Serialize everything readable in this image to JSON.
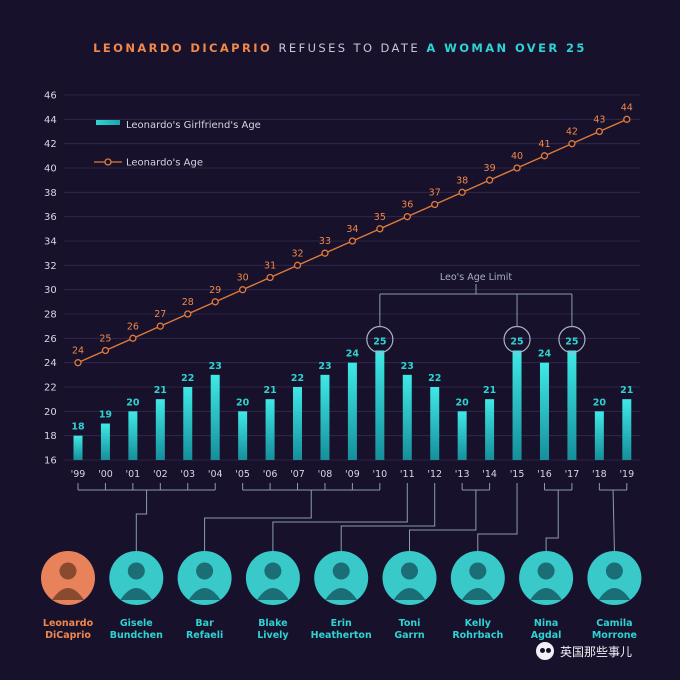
{
  "title": {
    "part1": "LEONARDO DICAPRIO",
    "part2": "REFUSES TO DATE",
    "part3": "A WOMAN OVER 25",
    "color_part1": "#f2874a",
    "color_part2": "#c9c6d6",
    "color_part3": "#2ed3d3"
  },
  "chart_data": {
    "type": "bar",
    "categories": [
      "'99",
      "'00",
      "'01",
      "'02",
      "'03",
      "'04",
      "'05",
      "'06",
      "'07",
      "'08",
      "'09",
      "'10",
      "'11",
      "'12",
      "'13",
      "'14",
      "'15",
      "'16",
      "'17",
      "'18",
      "'19"
    ],
    "series": [
      {
        "name": "Leonardo's Girlfriend's Age",
        "kind": "bar",
        "color": "#2ed3d3",
        "values": [
          18,
          19,
          20,
          21,
          22,
          23,
          20,
          21,
          22,
          23,
          24,
          25,
          23,
          22,
          20,
          21,
          25,
          24,
          25,
          20,
          21
        ]
      },
      {
        "name": "Leonardo's Age",
        "kind": "line",
        "color": "#e07a3a",
        "values": [
          24,
          25,
          26,
          27,
          28,
          29,
          30,
          31,
          32,
          33,
          34,
          35,
          36,
          37,
          38,
          39,
          40,
          41,
          42,
          43,
          44
        ]
      }
    ],
    "yticks": [
      16,
      18,
      20,
      22,
      24,
      26,
      28,
      30,
      32,
      34,
      36,
      38,
      40,
      42,
      44,
      46
    ],
    "ylim": [
      16,
      46
    ],
    "grid": true,
    "legend": "top-left",
    "highlighted_years": [
      "'10",
      "'15",
      "'17"
    ],
    "annotation": "Leo's Age Limit"
  },
  "people": [
    {
      "first": "Leonardo",
      "last": "DiCaprio",
      "is_leo": true,
      "years": []
    },
    {
      "first": "Gisele",
      "last": "Bundchen",
      "years": [
        "'99",
        "'00",
        "'01",
        "'02",
        "'03",
        "'04"
      ]
    },
    {
      "first": "Bar",
      "last": "Refaeli",
      "years": [
        "'05",
        "'06",
        "'07",
        "'08",
        "'09",
        "'10"
      ]
    },
    {
      "first": "Blake",
      "last": "Lively",
      "years": [
        "'11"
      ]
    },
    {
      "first": "Erin",
      "last": "Heatherton",
      "years": [
        "'12"
      ]
    },
    {
      "first": "Toni",
      "last": "Garrn",
      "years": [
        "'13",
        "'14"
      ]
    },
    {
      "first": "Kelly",
      "last": "Rohrbach",
      "years": [
        "'15"
      ]
    },
    {
      "first": "Nina",
      "last": "Agdal",
      "years": [
        "'16",
        "'17"
      ]
    },
    {
      "first": "Camila",
      "last": "Morrone",
      "years": [
        "'18",
        "'19"
      ]
    }
  ],
  "watermark": {
    "text": "英国那些事儿",
    "icon": "wechat-icon"
  }
}
